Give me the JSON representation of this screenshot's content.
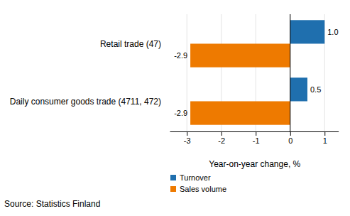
{
  "chart_data": {
    "type": "bar",
    "orientation": "horizontal",
    "categories": [
      "Retail trade (47)",
      "Daily consumer goods trade (4711, 472)"
    ],
    "series": [
      {
        "name": "Turnover",
        "color": "#1f6fae",
        "values": [
          1.0,
          0.5
        ],
        "value_labels": [
          "1.0",
          "0.5"
        ]
      },
      {
        "name": "Sales volume",
        "color": "#ee7a00",
        "values": [
          -2.9,
          -2.9
        ],
        "value_labels": [
          "-2.9",
          "-2.9"
        ]
      }
    ],
    "x_label": "Year-on-year change, %",
    "xlim": [
      -3.5,
      1.4
    ],
    "xticks": [
      -3,
      -2,
      -1,
      0,
      1
    ],
    "grid": true,
    "data_labels": true,
    "legend": "bottom",
    "source": "Source: Statistics Finland"
  }
}
